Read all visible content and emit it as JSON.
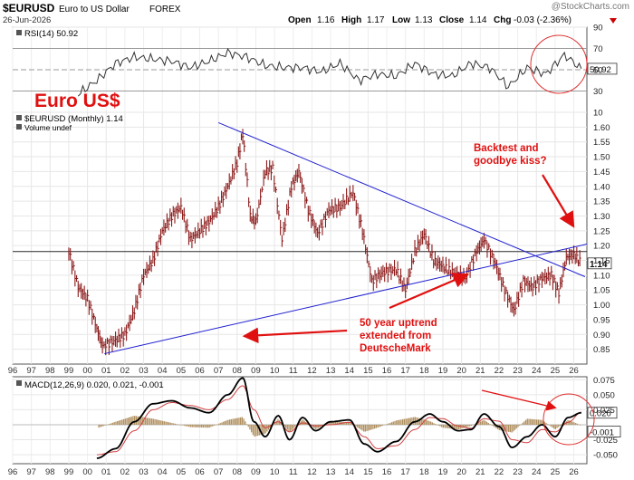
{
  "header": {
    "symbol": "$EURUSD",
    "name": "Euro to US Dollar",
    "exchange": "FOREX",
    "date": "26-Jun-2026",
    "watermark": "@StockCharts.com",
    "open_label": "Open",
    "open": "1.16",
    "high_label": "High",
    "high": "1.17",
    "low_label": "Low",
    "low": "1.13",
    "close_label": "Close",
    "close": "1.14",
    "chg_label": "Chg",
    "chg": "-0.03 (-2.36%)"
  },
  "colors": {
    "price_bars": "#8b1a1a",
    "trendline": "#2020d0",
    "annotation": "#e01010",
    "macd_line": "#000000",
    "macd_signal": "#d04040",
    "histogram": "#b09060",
    "rsi_line": "#333333",
    "circle": "#e03030"
  },
  "annotations": {
    "title": "Euro US$",
    "backtest": [
      "Backtest and",
      "goodbye kiss?"
    ],
    "uptrend": [
      "50 year uptrend",
      "extended from",
      "DeutscheMark"
    ]
  },
  "chart_data": [
    {
      "type": "line",
      "panel": "RSI",
      "title": "RSI(14) 50.92",
      "ylim": [
        10,
        90
      ],
      "yticks": [
        90,
        70,
        50,
        30,
        10
      ],
      "current_value": 50.92,
      "current_label": "50.92",
      "x": [
        1999.5,
        2000.5,
        2001.5,
        2002.5,
        2003.5,
        2004.5,
        2005.5,
        2006.5,
        2007.5,
        2008.5,
        2009.5,
        2010.5,
        2011.5,
        2012.5,
        2013.5,
        2014.5,
        2015.5,
        2016.5,
        2017.5,
        2018.5,
        2019.5,
        2020.5,
        2021.5,
        2022.5,
        2023.5,
        2024.5,
        2025.5,
        2026.4
      ],
      "values": [
        27,
        40,
        56,
        62,
        60,
        58,
        52,
        58,
        66,
        62,
        54,
        52,
        52,
        48,
        56,
        40,
        46,
        44,
        56,
        46,
        44,
        56,
        52,
        34,
        52,
        46,
        64,
        51
      ]
    },
    {
      "type": "bar",
      "panel": "price",
      "title": "$EURUSD (Monthly) 1.14",
      "subtitle": "Volume undef",
      "ylim": [
        0.8,
        1.65
      ],
      "yticks": [
        0.85,
        0.9,
        0.95,
        1.0,
        1.05,
        1.1,
        1.15,
        1.2,
        1.25,
        1.3,
        1.35,
        1.4,
        1.45,
        1.5,
        1.55,
        1.6
      ],
      "xlim": [
        1996,
        2026.7
      ],
      "xticks": [
        "96",
        "97",
        "98",
        "99",
        "00",
        "01",
        "02",
        "03",
        "04",
        "05",
        "06",
        "07",
        "08",
        "09",
        "10",
        "11",
        "12",
        "13",
        "14",
        "15",
        "16",
        "17",
        "18",
        "19",
        "20",
        "21",
        "22",
        "23",
        "24",
        "25",
        "26"
      ],
      "last_price": 1.14,
      "last_label": "1.14",
      "horizontal_line": 1.18,
      "x": [
        1999.0,
        1999.5,
        2000.0,
        2000.5,
        2000.8,
        2001.5,
        2002.0,
        2002.5,
        2003.0,
        2003.5,
        2004.0,
        2004.5,
        2005.0,
        2005.5,
        2006.0,
        2006.5,
        2007.0,
        2007.5,
        2008.0,
        2008.3,
        2008.7,
        2009.0,
        2009.5,
        2009.9,
        2010.4,
        2010.9,
        2011.3,
        2011.8,
        2012.3,
        2012.9,
        2013.5,
        2014.2,
        2014.7,
        2015.2,
        2015.8,
        2016.5,
        2017.0,
        2017.5,
        2018.0,
        2018.5,
        2019.0,
        2019.5,
        2020.2,
        2020.8,
        2021.2,
        2021.8,
        2022.3,
        2022.8,
        2023.3,
        2023.8,
        2024.3,
        2024.8,
        2025.2,
        2025.6,
        2026.0,
        2026.4
      ],
      "values": [
        1.18,
        1.06,
        1.02,
        0.92,
        0.86,
        0.88,
        0.9,
        0.98,
        1.1,
        1.15,
        1.25,
        1.3,
        1.33,
        1.22,
        1.25,
        1.28,
        1.33,
        1.4,
        1.48,
        1.58,
        1.3,
        1.28,
        1.45,
        1.46,
        1.22,
        1.4,
        1.45,
        1.32,
        1.24,
        1.32,
        1.33,
        1.38,
        1.25,
        1.08,
        1.11,
        1.12,
        1.05,
        1.18,
        1.24,
        1.15,
        1.13,
        1.11,
        1.09,
        1.18,
        1.22,
        1.14,
        1.05,
        0.98,
        1.08,
        1.06,
        1.09,
        1.1,
        1.04,
        1.16,
        1.17,
        1.14
      ]
    },
    {
      "type": "line",
      "panel": "MACD",
      "title": "MACD(12,26,9) 0.020, 0.021, -0.001",
      "ylim": [
        -0.065,
        0.08
      ],
      "yticks": [
        0.075,
        0.05,
        0.025,
        -0.025,
        -0.05
      ],
      "macd_label": "0.020",
      "hist_label": "-0.001",
      "x": [
        2000.5,
        2001.5,
        2002.5,
        2003.5,
        2004.5,
        2005.5,
        2006.5,
        2007.5,
        2008.3,
        2008.9,
        2009.5,
        2010.2,
        2010.8,
        2011.5,
        2012.2,
        2013.0,
        2014.0,
        2014.8,
        2015.5,
        2016.5,
        2017.5,
        2018.3,
        2019.0,
        2019.8,
        2020.5,
        2021.2,
        2022.0,
        2022.7,
        2023.5,
        2024.3,
        2025.0,
        2025.7,
        2026.4
      ],
      "series": [
        {
          "name": "MACD",
          "values": [
            -0.056,
            -0.04,
            0.005,
            0.035,
            0.04,
            0.028,
            0.02,
            0.05,
            0.078,
            0.005,
            -0.02,
            0.015,
            -0.025,
            0.012,
            -0.01,
            0.005,
            0.008,
            -0.032,
            -0.045,
            -0.028,
            0.005,
            0.018,
            0.005,
            -0.01,
            -0.008,
            0.018,
            -0.003,
            -0.038,
            -0.02,
            0.0,
            -0.02,
            0.012,
            0.02
          ]
        },
        {
          "name": "Signal",
          "values": [
            -0.05,
            -0.045,
            -0.01,
            0.025,
            0.037,
            0.032,
            0.025,
            0.042,
            0.065,
            0.025,
            -0.005,
            0.005,
            -0.012,
            0.003,
            -0.002,
            0.0,
            0.004,
            -0.02,
            -0.04,
            -0.035,
            -0.008,
            0.012,
            0.01,
            -0.002,
            -0.006,
            0.01,
            0.006,
            -0.025,
            -0.03,
            -0.008,
            -0.012,
            0.004,
            0.021
          ]
        }
      ]
    }
  ]
}
